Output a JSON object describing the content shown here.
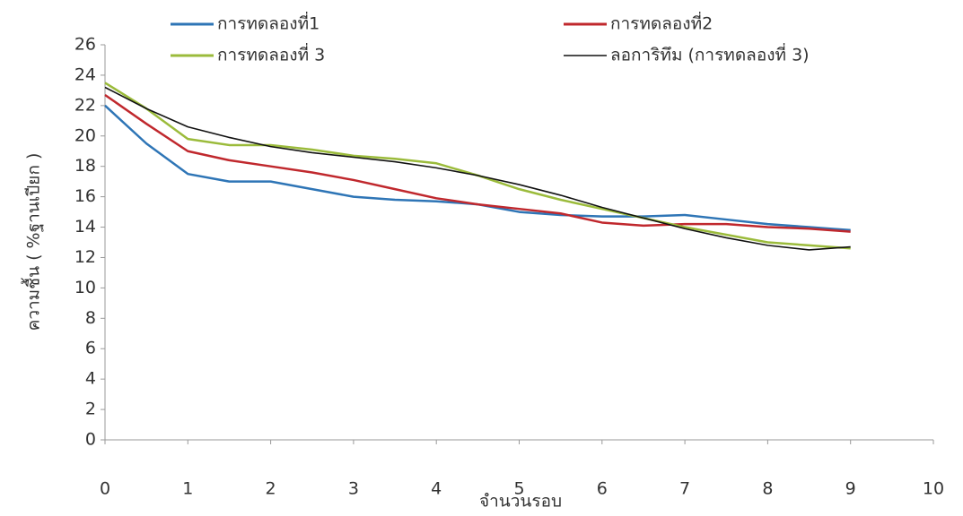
{
  "chart_data": {
    "type": "line",
    "x_label": "จำนวนรอบ",
    "y_label": "ความชื้น ( %ฐานเปียก )",
    "x": [
      0,
      0.5,
      1,
      1.5,
      2,
      2.5,
      3,
      3.5,
      4,
      4.5,
      5,
      5.5,
      6,
      6.5,
      7,
      7.5,
      8,
      8.5,
      9
    ],
    "series": [
      {
        "name": "การทดลองที่1",
        "color": "#2e75b6",
        "values": [
          22,
          19.5,
          17.5,
          17,
          17,
          16.5,
          16,
          15.8,
          15.7,
          15.5,
          15,
          14.8,
          14.7,
          14.7,
          14.8,
          14.5,
          14.2,
          14,
          13.8
        ]
      },
      {
        "name": "การทดลองที่2",
        "color": "#c0282d",
        "values": [
          22.7,
          20.8,
          19,
          18.4,
          18,
          17.6,
          17.1,
          16.5,
          15.9,
          15.5,
          15.2,
          14.9,
          14.3,
          14.1,
          14.2,
          14.2,
          14,
          13.9,
          13.7
        ]
      },
      {
        "name": "การทดลองที่ 3",
        "color": "#9bbb3b",
        "values": [
          23.5,
          21.8,
          19.8,
          19.4,
          19.4,
          19.1,
          18.7,
          18.5,
          18.2,
          17.4,
          16.5,
          15.8,
          15.2,
          14.6,
          14,
          13.5,
          13,
          12.8,
          12.6
        ]
      },
      {
        "name": "ลอการิทึม (การทดลองที่ 3)",
        "color": "#111111",
        "values": [
          23.2,
          21.8,
          20.6,
          19.9,
          19.3,
          18.9,
          18.6,
          18.3,
          17.9,
          17.4,
          16.8,
          16.1,
          15.3,
          14.6,
          13.9,
          13.3,
          12.8,
          12.5,
          12.7
        ]
      }
    ],
    "xlim": [
      0,
      10
    ],
    "xticks": [
      0,
      1,
      2,
      3,
      4,
      5,
      6,
      7,
      8,
      9,
      10
    ],
    "ylim": [
      0,
      26
    ],
    "yticks": [
      0,
      2,
      4,
      6,
      8,
      10,
      12,
      14,
      16,
      18,
      20,
      22,
      24,
      26
    ],
    "grid": false,
    "legend": "top"
  }
}
